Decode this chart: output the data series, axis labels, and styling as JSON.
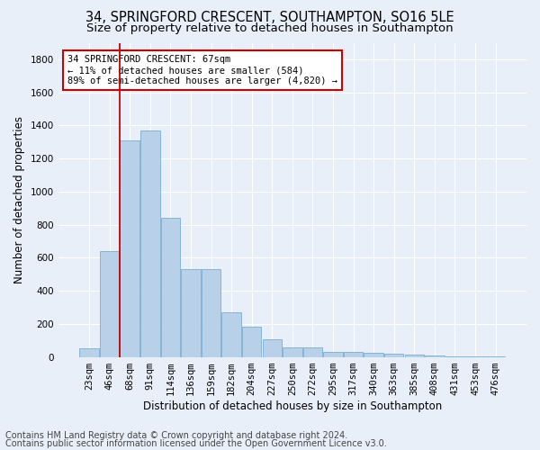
{
  "title_line1": "34, SPRINGFORD CRESCENT, SOUTHAMPTON, SO16 5LE",
  "title_line2": "Size of property relative to detached houses in Southampton",
  "xlabel": "Distribution of detached houses by size in Southampton",
  "ylabel": "Number of detached properties",
  "categories": [
    "23sqm",
    "46sqm",
    "68sqm",
    "91sqm",
    "114sqm",
    "136sqm",
    "159sqm",
    "182sqm",
    "204sqm",
    "227sqm",
    "250sqm",
    "272sqm",
    "295sqm",
    "317sqm",
    "340sqm",
    "363sqm",
    "385sqm",
    "408sqm",
    "431sqm",
    "453sqm",
    "476sqm"
  ],
  "values": [
    50,
    640,
    1310,
    1370,
    840,
    530,
    530,
    270,
    185,
    105,
    60,
    60,
    30,
    30,
    25,
    20,
    15,
    8,
    5,
    3,
    5
  ],
  "bar_color": "#b8d0e8",
  "bar_edge_color": "#7aadd4",
  "vline_x_index": 2,
  "vline_color": "#cc0000",
  "annotation_text": "34 SPRINGFORD CRESCENT: 67sqm\n← 11% of detached houses are smaller (584)\n89% of semi-detached houses are larger (4,820) →",
  "annotation_box_color": "#ffffff",
  "annotation_box_edge_color": "#cc0000",
  "ylim": [
    0,
    1900
  ],
  "yticks": [
    0,
    200,
    400,
    600,
    800,
    1000,
    1200,
    1400,
    1600,
    1800
  ],
  "footer_line1": "Contains HM Land Registry data © Crown copyright and database right 2024.",
  "footer_line2": "Contains public sector information licensed under the Open Government Licence v3.0.",
  "background_color": "#e8eff8",
  "plot_bg_color": "#e8eff8",
  "title1_fontsize": 10.5,
  "title2_fontsize": 9.5,
  "axis_label_fontsize": 8.5,
  "tick_fontsize": 7.5,
  "annotation_fontsize": 7.5,
  "footer_fontsize": 7.0
}
